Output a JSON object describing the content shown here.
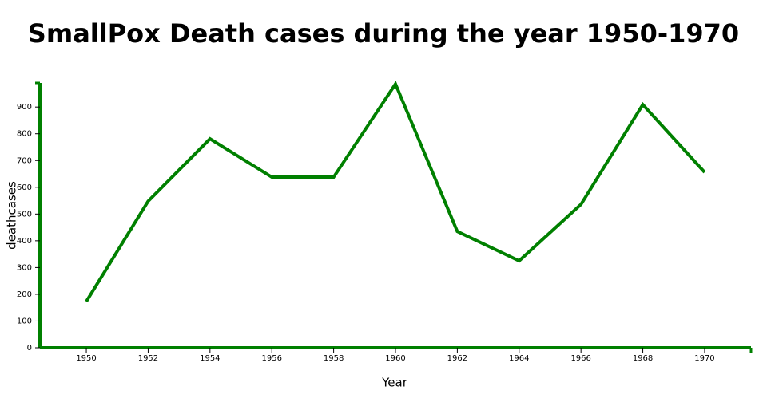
{
  "chart_data": {
    "type": "line",
    "title": "SmallPox Death cases during the year 1950-1970",
    "x_label": "Year",
    "y_label": "deathcases",
    "x": [
      1950,
      1952,
      1954,
      1956,
      1958,
      1960,
      1962,
      1964,
      1966,
      1968,
      1970
    ],
    "series": [
      {
        "name": "deathcases",
        "color": "#008000",
        "values": [
          173,
          548,
          781,
          638,
          638,
          986,
          435,
          325,
          536,
          909,
          656
        ]
      }
    ],
    "xlim": [
      1948.5,
      1971.5
    ],
    "xticks": [
      1950,
      1952,
      1954,
      1956,
      1958,
      1960,
      1962,
      1964,
      1966,
      1968,
      1970
    ],
    "ylim": [
      0,
      990
    ],
    "yticks": [
      0,
      100,
      200,
      300,
      400,
      500,
      600,
      700,
      800,
      900
    ],
    "axis_color": "#008000",
    "grid": false
  }
}
